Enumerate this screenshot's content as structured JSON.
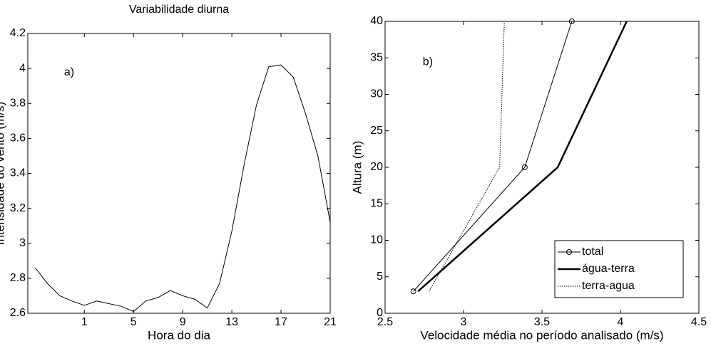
{
  "chart_data": [
    {
      "type": "line",
      "title": "Variabilidade diurna",
      "annotation": "a)",
      "x_label": "Hora do dia",
      "y_label": "Intensidade do vento (m/s)",
      "x": [
        -3,
        -2,
        -1,
        0,
        1,
        2,
        3,
        4,
        5,
        6,
        7,
        8,
        9,
        10,
        11,
        12,
        13,
        14,
        15,
        16,
        17,
        18,
        19,
        20,
        21
      ],
      "values": [
        2.86,
        2.77,
        2.7,
        2.67,
        2.645,
        2.67,
        2.655,
        2.64,
        2.61,
        2.67,
        2.69,
        2.73,
        2.7,
        2.68,
        2.63,
        2.77,
        3.07,
        3.45,
        3.79,
        4.01,
        4.02,
        3.95,
        3.74,
        3.5,
        3.12
      ],
      "color": "#000000",
      "xlim": [
        -3.6,
        21
      ],
      "xticks": [
        1,
        5,
        9,
        13,
        17,
        21
      ],
      "ylim": [
        2.6,
        4.2
      ],
      "yticks": [
        2.6,
        2.8,
        3,
        3.2,
        3.4,
        3.6,
        3.8,
        4,
        4.2
      ]
    },
    {
      "type": "line",
      "annotation": "b)",
      "x_label": "Velocidade média no período analisado (m/s)",
      "y_label": "Altura (m)",
      "series": [
        {
          "name": "total",
          "color": "#000000",
          "linewidth": 1,
          "dash": "solid",
          "marker": "o",
          "x": [
            2.68,
            3.39,
            3.69
          ],
          "values": [
            3,
            20,
            40
          ]
        },
        {
          "name": "água-terra",
          "color": "#000000",
          "linewidth": 2.5,
          "dash": "solid",
          "marker": "none",
          "x": [
            2.71,
            3.6,
            4.04
          ],
          "values": [
            3,
            20,
            40
          ]
        },
        {
          "name": "terra-agua",
          "color": "#000000",
          "linewidth": 1,
          "dash": "dotted",
          "marker": "none",
          "x": [
            2.78,
            3.23,
            3.26
          ],
          "values": [
            3,
            20,
            40
          ]
        }
      ],
      "xlim": [
        2.5,
        4.5
      ],
      "xticks": [
        2.5,
        3,
        3.5,
        4,
        4.5
      ],
      "ylim": [
        0,
        40
      ],
      "yticks": [
        0,
        5,
        10,
        15,
        20,
        25,
        30,
        35,
        40
      ],
      "legend": "lower-right"
    }
  ]
}
